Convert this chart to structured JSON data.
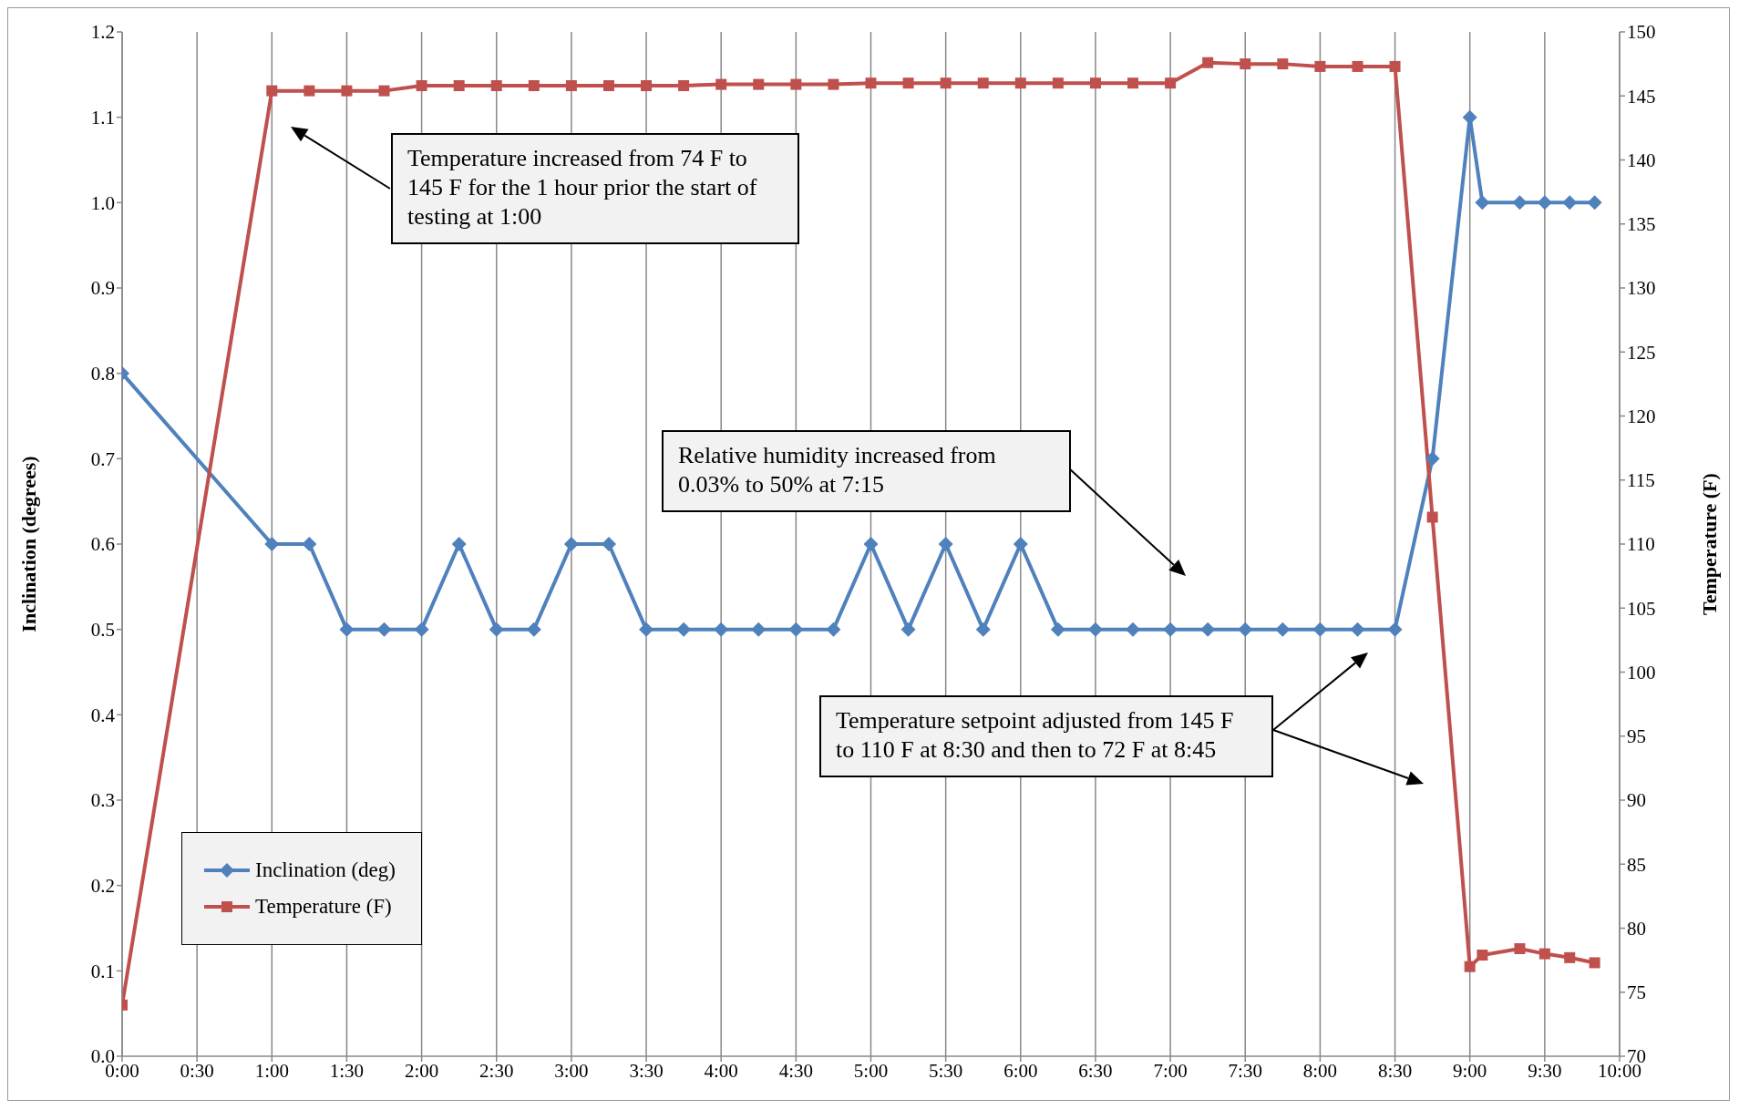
{
  "chart_data": {
    "type": "line",
    "ylabel": "Inclination (degrees)",
    "y2label": "Temperature (F)",
    "x": [
      0,
      1,
      1.25,
      1.5,
      1.75,
      2,
      2.25,
      2.5,
      2.75,
      3,
      3.25,
      3.5,
      3.75,
      4,
      4.25,
      4.5,
      4.75,
      5,
      5.25,
      5.5,
      5.75,
      6,
      6.25,
      6.5,
      6.75,
      7,
      7.25,
      7.5,
      7.75,
      8,
      8.25,
      8.5,
      8.75,
      9,
      9.0833,
      9.3333,
      9.5,
      9.6667,
      9.8333
    ],
    "series": [
      {
        "name": "Inclination (deg)",
        "color": "#4f81bd",
        "marker": "diamond",
        "values": [
          0.8,
          0.6,
          0.6,
          0.5,
          0.5,
          0.5,
          0.6,
          0.5,
          0.5,
          0.6,
          0.6,
          0.5,
          0.5,
          0.5,
          0.5,
          0.5,
          0.5,
          0.6,
          0.5,
          0.6,
          0.5,
          0.6,
          0.5,
          0.5,
          0.5,
          0.5,
          0.5,
          0.5,
          0.5,
          0.5,
          0.5,
          0.5,
          0.7,
          1.1,
          1.0,
          1.0,
          1.0,
          1.0,
          1.0
        ]
      },
      {
        "name": "Temperature (F)",
        "color": "#c0504d",
        "marker": "square",
        "axis": "y2",
        "values": [
          74,
          145.4,
          145.4,
          145.4,
          145.4,
          145.8,
          145.8,
          145.8,
          145.8,
          145.8,
          145.8,
          145.8,
          145.8,
          145.9,
          145.9,
          145.9,
          145.9,
          146.0,
          146.0,
          146.0,
          146.0,
          146.0,
          146.0,
          146.0,
          146.0,
          146.0,
          147.6,
          147.5,
          147.5,
          147.3,
          147.3,
          147.3,
          112.1,
          77.0,
          77.9,
          78.4,
          78.0,
          77.7,
          77.3
        ]
      }
    ],
    "xlim": [
      0,
      10
    ],
    "xticks": [
      {
        "value": 0,
        "label": "0:00"
      },
      {
        "value": 0.5,
        "label": "0:30"
      },
      {
        "value": 1,
        "label": "1:00"
      },
      {
        "value": 1.5,
        "label": "1:30"
      },
      {
        "value": 2,
        "label": "2:00"
      },
      {
        "value": 2.5,
        "label": "2:30"
      },
      {
        "value": 3,
        "label": "3:00"
      },
      {
        "value": 3.5,
        "label": "3:30"
      },
      {
        "value": 4,
        "label": "4:00"
      },
      {
        "value": 4.5,
        "label": "4:30"
      },
      {
        "value": 5,
        "label": "5:00"
      },
      {
        "value": 5.5,
        "label": "5:30"
      },
      {
        "value": 6,
        "label": "6:00"
      },
      {
        "value": 6.5,
        "label": "6:30"
      },
      {
        "value": 7,
        "label": "7:00"
      },
      {
        "value": 7.5,
        "label": "7:30"
      },
      {
        "value": 8,
        "label": "8:00"
      },
      {
        "value": 8.5,
        "label": "8:30"
      },
      {
        "value": 9,
        "label": "9:00"
      },
      {
        "value": 9.5,
        "label": "9:30"
      },
      {
        "value": 10,
        "label": "10:00"
      }
    ],
    "ylim": [
      0,
      1.2
    ],
    "yticks": [
      {
        "value": 0,
        "label": "0.0"
      },
      {
        "value": 0.1,
        "label": "0.1"
      },
      {
        "value": 0.2,
        "label": "0.2"
      },
      {
        "value": 0.3,
        "label": "0.3"
      },
      {
        "value": 0.4,
        "label": "0.4"
      },
      {
        "value": 0.5,
        "label": "0.5"
      },
      {
        "value": 0.6,
        "label": "0.6"
      },
      {
        "value": 0.7,
        "label": "0.7"
      },
      {
        "value": 0.8,
        "label": "0.8"
      },
      {
        "value": 0.9,
        "label": "0.9"
      },
      {
        "value": 1,
        "label": "1.0"
      },
      {
        "value": 1.1,
        "label": "1.1"
      },
      {
        "value": 1.2,
        "label": "1.2"
      }
    ],
    "y2lim": [
      70,
      150
    ],
    "y2ticks": [
      70,
      75,
      80,
      85,
      90,
      95,
      100,
      105,
      110,
      115,
      120,
      125,
      130,
      135,
      140,
      145,
      150
    ],
    "grid": "x",
    "legend": "bottom left",
    "line_style": "solid",
    "annotations": [
      "Temperature increased from 74 F to 145 F for the 1 hour prior the start of testing at 1:00",
      "Relative humidity increased from 0.03% to 50% at 7:15",
      "Temperature setpoint adjusted from 145 F to 110 F at 8:30 and then to 72 F at 8:45"
    ]
  }
}
